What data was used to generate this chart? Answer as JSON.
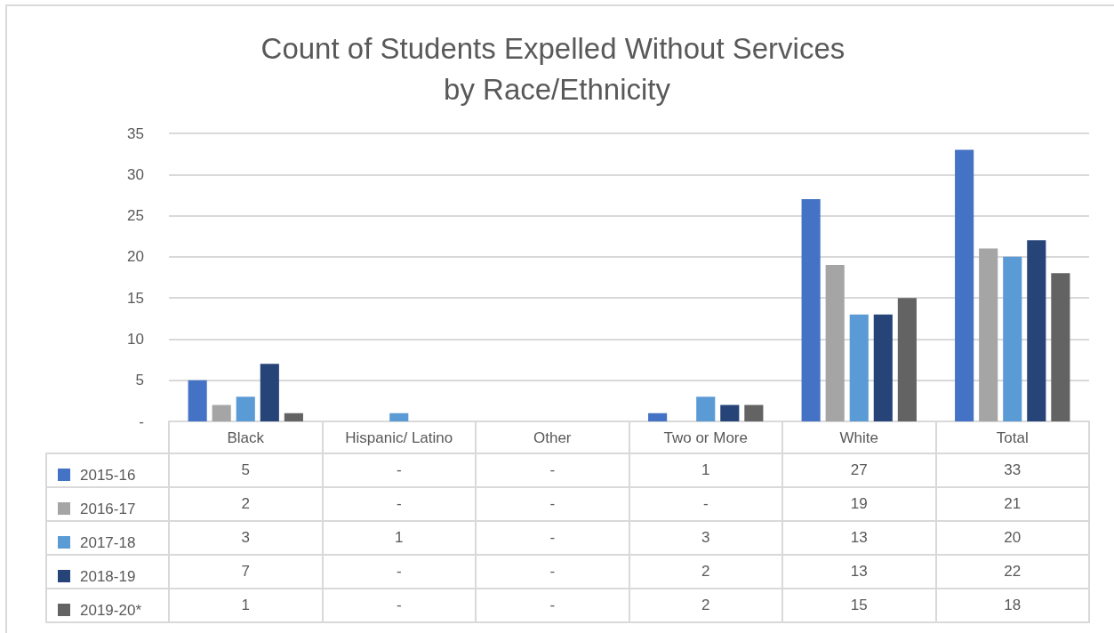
{
  "chart_data": {
    "type": "bar",
    "title": "Count of Students Expelled Without Services by Race/Ethnicity",
    "categories": [
      "Black",
      "Hispanic/ Latino",
      "Other",
      "Two or More",
      "White",
      "Total"
    ],
    "series": [
      {
        "name": "2015-16",
        "color": "#4472c4",
        "values": [
          5,
          0,
          0,
          1,
          27,
          33
        ],
        "value_labels": [
          "5",
          "-",
          "-",
          "1",
          "27",
          "33"
        ]
      },
      {
        "name": "2016-17",
        "color": "#a5a5a5",
        "values": [
          2,
          0,
          0,
          0,
          19,
          21
        ],
        "value_labels": [
          "2",
          "-",
          "-",
          "-",
          "19",
          "21"
        ]
      },
      {
        "name": "2017-18",
        "color": "#5b9bd5",
        "values": [
          3,
          1,
          0,
          3,
          13,
          20
        ],
        "value_labels": [
          "3",
          "1",
          "-",
          "3",
          "13",
          "20"
        ]
      },
      {
        "name": "2018-19",
        "color": "#264478",
        "values": [
          7,
          0,
          0,
          2,
          13,
          22
        ],
        "value_labels": [
          "7",
          "-",
          "-",
          "2",
          "13",
          "22"
        ]
      },
      {
        "name": "2019-20*",
        "color": "#636363",
        "values": [
          1,
          0,
          0,
          2,
          15,
          18
        ],
        "value_labels": [
          "1",
          "-",
          "-",
          "2",
          "15",
          "18"
        ]
      }
    ],
    "ylim": [
      0,
      35
    ],
    "yticks": [
      {
        "value": 0,
        "label": "-"
      },
      5,
      10,
      15,
      20,
      25,
      30,
      35
    ],
    "grid": "y",
    "legend": "bottom left"
  }
}
